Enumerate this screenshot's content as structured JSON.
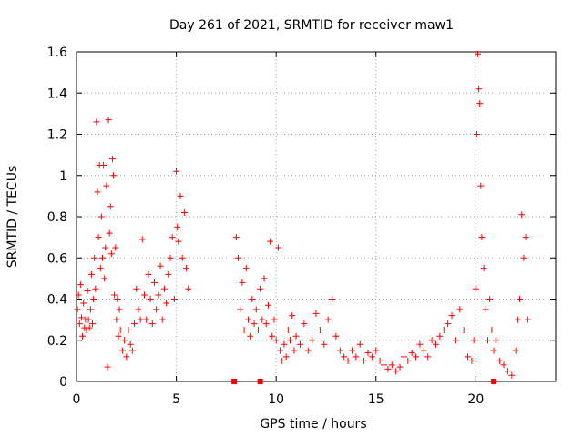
{
  "chart_data": {
    "type": "scatter",
    "title": "Day 261 of 2021, SRMTID for receiver maw1",
    "xlabel": "GPS time / hours",
    "ylabel": "SRMTID / TECUs",
    "xlim": [
      0,
      24
    ],
    "ylim": [
      0,
      1.6
    ],
    "x_ticks": [
      0,
      5,
      10,
      15,
      20
    ],
    "y_ticks": [
      0,
      0.2,
      0.4,
      0.6,
      0.8,
      1,
      1.2,
      1.4,
      1.6
    ],
    "x_tick_labels": [
      "0",
      "5",
      "10",
      "15",
      "20"
    ],
    "y_tick_labels": [
      "0",
      "0.2",
      "0.4",
      "0.6",
      "0.8",
      "1",
      "1.2",
      "1.4",
      "1.6"
    ],
    "grid": true,
    "marker": "+",
    "color": "#ff0000",
    "series": [
      {
        "name": "SRMTID",
        "points": [
          [
            0.05,
            0.35
          ],
          [
            0.1,
            0.42
          ],
          [
            0.15,
            0.28
          ],
          [
            0.2,
            0.47
          ],
          [
            0.25,
            0.31
          ],
          [
            0.3,
            0.22
          ],
          [
            0.35,
            0.38
          ],
          [
            0.4,
            0.26
          ],
          [
            0.45,
            0.3
          ],
          [
            0.5,
            0.25
          ],
          [
            0.55,
            0.44
          ],
          [
            0.6,
            0.3
          ],
          [
            0.65,
            0.26
          ],
          [
            0.7,
            0.35
          ],
          [
            0.75,
            0.52
          ],
          [
            0.8,
            0.28
          ],
          [
            0.85,
            0.4
          ],
          [
            0.9,
            0.6
          ],
          [
            0.95,
            0.45
          ],
          [
            1.0,
            1.26
          ],
          [
            1.05,
            0.92
          ],
          [
            1.1,
            0.7
          ],
          [
            1.15,
            1.05
          ],
          [
            1.2,
            0.55
          ],
          [
            1.25,
            0.8
          ],
          [
            1.3,
            0.6
          ],
          [
            1.35,
            1.05
          ],
          [
            1.4,
            0.5
          ],
          [
            1.45,
            0.65
          ],
          [
            1.5,
            0.95
          ],
          [
            1.55,
            0.07
          ],
          [
            1.6,
            1.27
          ],
          [
            1.65,
            0.72
          ],
          [
            1.7,
            0.85
          ],
          [
            1.75,
            0.62
          ],
          [
            1.8,
            1.08
          ],
          [
            1.85,
            1.0
          ],
          [
            1.9,
            0.42
          ],
          [
            1.95,
            0.65
          ],
          [
            2.0,
            0.3
          ],
          [
            2.05,
            0.4
          ],
          [
            2.1,
            0.22
          ],
          [
            2.15,
            0.35
          ],
          [
            2.2,
            0.25
          ],
          [
            2.3,
            0.15
          ],
          [
            2.4,
            0.2
          ],
          [
            2.5,
            0.12
          ],
          [
            2.6,
            0.25
          ],
          [
            2.7,
            0.18
          ],
          [
            2.8,
            0.15
          ],
          [
            2.9,
            0.28
          ],
          [
            3.0,
            0.45
          ],
          [
            3.1,
            0.35
          ],
          [
            3.2,
            0.3
          ],
          [
            3.3,
            0.69
          ],
          [
            3.4,
            0.42
          ],
          [
            3.5,
            0.3
          ],
          [
            3.6,
            0.52
          ],
          [
            3.7,
            0.4
          ],
          [
            3.8,
            0.28
          ],
          [
            3.9,
            0.48
          ],
          [
            4.0,
            0.35
          ],
          [
            4.1,
            0.42
          ],
          [
            4.2,
            0.56
          ],
          [
            4.3,
            0.3
          ],
          [
            4.4,
            0.45
          ],
          [
            4.5,
            0.38
          ],
          [
            4.6,
            0.52
          ],
          [
            4.7,
            0.6
          ],
          [
            4.8,
            0.7
          ],
          [
            4.9,
            0.4
          ],
          [
            5.0,
            1.02
          ],
          [
            5.05,
            0.75
          ],
          [
            5.1,
            0.68
          ],
          [
            5.2,
            0.9
          ],
          [
            5.3,
            0.6
          ],
          [
            5.4,
            0.82
          ],
          [
            5.5,
            0.55
          ],
          [
            5.6,
            0.45
          ],
          [
            8.0,
            0.7
          ],
          [
            8.1,
            0.6
          ],
          [
            8.2,
            0.35
          ],
          [
            8.3,
            0.48
          ],
          [
            8.4,
            0.25
          ],
          [
            8.5,
            0.55
          ],
          [
            8.6,
            0.3
          ],
          [
            8.7,
            0.22
          ],
          [
            8.8,
            0.4
          ],
          [
            8.9,
            0.28
          ],
          [
            9.0,
            0.35
          ],
          [
            9.1,
            0.25
          ],
          [
            9.2,
            0.45
          ],
          [
            9.3,
            0.3
          ],
          [
            9.4,
            0.5
          ],
          [
            9.5,
            0.28
          ],
          [
            9.6,
            0.37
          ],
          [
            9.7,
            0.68
          ],
          [
            9.8,
            0.22
          ],
          [
            9.9,
            0.3
          ],
          [
            10.0,
            0.2
          ],
          [
            10.1,
            0.65
          ],
          [
            10.2,
            0.15
          ],
          [
            10.3,
            0.1
          ],
          [
            10.4,
            0.18
          ],
          [
            10.5,
            0.12
          ],
          [
            10.6,
            0.25
          ],
          [
            10.7,
            0.2
          ],
          [
            10.8,
            0.32
          ],
          [
            10.9,
            0.15
          ],
          [
            11.0,
            0.22
          ],
          [
            11.2,
            0.18
          ],
          [
            11.4,
            0.28
          ],
          [
            11.6,
            0.15
          ],
          [
            11.8,
            0.2
          ],
          [
            12.0,
            0.33
          ],
          [
            12.2,
            0.25
          ],
          [
            12.4,
            0.18
          ],
          [
            12.6,
            0.3
          ],
          [
            12.8,
            0.4
          ],
          [
            13.0,
            0.22
          ],
          [
            13.2,
            0.15
          ],
          [
            13.4,
            0.12
          ],
          [
            13.6,
            0.1
          ],
          [
            13.8,
            0.15
          ],
          [
            14.0,
            0.12
          ],
          [
            14.2,
            0.18
          ],
          [
            14.4,
            0.1
          ],
          [
            14.6,
            0.14
          ],
          [
            14.8,
            0.12
          ],
          [
            15.0,
            0.15
          ],
          [
            15.2,
            0.1
          ],
          [
            15.4,
            0.08
          ],
          [
            15.6,
            0.06
          ],
          [
            15.8,
            0.08
          ],
          [
            16.0,
            0.05
          ],
          [
            16.2,
            0.07
          ],
          [
            16.4,
            0.12
          ],
          [
            16.6,
            0.1
          ],
          [
            16.8,
            0.14
          ],
          [
            17.0,
            0.12
          ],
          [
            17.2,
            0.18
          ],
          [
            17.4,
            0.15
          ],
          [
            17.6,
            0.12
          ],
          [
            17.8,
            0.2
          ],
          [
            18.0,
            0.18
          ],
          [
            18.2,
            0.22
          ],
          [
            18.4,
            0.25
          ],
          [
            18.6,
            0.28
          ],
          [
            18.8,
            0.32
          ],
          [
            19.0,
            0.2
          ],
          [
            19.2,
            0.35
          ],
          [
            19.4,
            0.25
          ],
          [
            19.6,
            0.12
          ],
          [
            19.8,
            0.1
          ],
          [
            19.9,
            0.2
          ],
          [
            20.0,
            0.45
          ],
          [
            20.05,
            1.2
          ],
          [
            20.1,
            1.59
          ],
          [
            20.15,
            1.42
          ],
          [
            20.2,
            1.35
          ],
          [
            20.25,
            0.95
          ],
          [
            20.3,
            0.7
          ],
          [
            20.4,
            0.55
          ],
          [
            20.5,
            0.35
          ],
          [
            20.6,
            0.2
          ],
          [
            20.7,
            0.4
          ],
          [
            20.8,
            0.25
          ],
          [
            20.9,
            0.15
          ],
          [
            21.0,
            0.2
          ],
          [
            21.2,
            0.1
          ],
          [
            21.4,
            0.08
          ],
          [
            21.6,
            0.05
          ],
          [
            21.8,
            0.03
          ],
          [
            22.0,
            0.15
          ],
          [
            22.1,
            0.3
          ],
          [
            22.2,
            0.4
          ],
          [
            22.3,
            0.81
          ],
          [
            22.4,
            0.6
          ],
          [
            22.5,
            0.7
          ],
          [
            22.6,
            0.3
          ]
        ]
      }
    ],
    "bottom_markers_x": [
      7.9,
      9.2,
      20.9
    ]
  }
}
